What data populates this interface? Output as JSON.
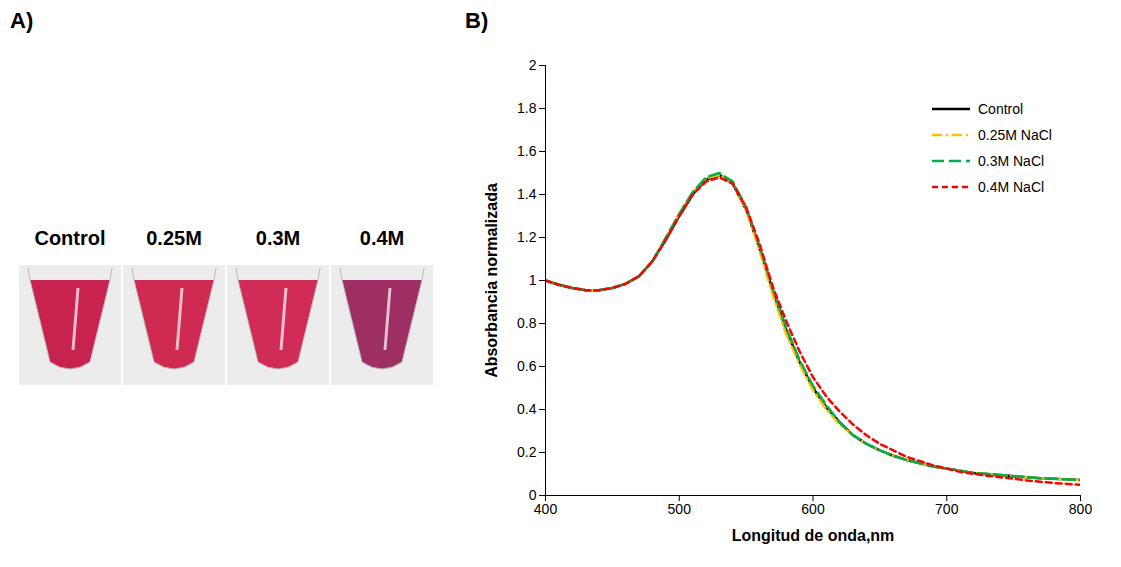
{
  "panel_a": {
    "letter": "A)",
    "labels": [
      "Control",
      "0.25M",
      "0.3M",
      "0.4M"
    ]
  },
  "panel_b": {
    "letter": "B)"
  },
  "chart_data": {
    "type": "line",
    "x_label": "Longitud de onda,nm",
    "y_label": "Absorbancia normalizada",
    "x": [
      400,
      410,
      420,
      430,
      440,
      450,
      460,
      470,
      480,
      490,
      500,
      510,
      520,
      530,
      540,
      550,
      560,
      570,
      580,
      590,
      600,
      610,
      620,
      630,
      640,
      650,
      660,
      670,
      680,
      690,
      700,
      710,
      720,
      730,
      740,
      750,
      760,
      770,
      780,
      790,
      800
    ],
    "series": [
      {
        "name": "Control",
        "color": "#000000",
        "line_style": "solid",
        "values": [
          1.0,
          0.98,
          0.965,
          0.955,
          0.955,
          0.965,
          0.985,
          1.02,
          1.09,
          1.19,
          1.3,
          1.4,
          1.47,
          1.49,
          1.45,
          1.33,
          1.15,
          0.95,
          0.77,
          0.62,
          0.5,
          0.41,
          0.34,
          0.28,
          0.24,
          0.21,
          0.185,
          0.165,
          0.15,
          0.135,
          0.125,
          0.115,
          0.105,
          0.1,
          0.095,
          0.09,
          0.085,
          0.08,
          0.078,
          0.075,
          0.072
        ]
      },
      {
        "name": "0.25M NaCl",
        "color": "#FFC000",
        "line_style": "dash-dot",
        "values": [
          1.0,
          0.98,
          0.965,
          0.955,
          0.955,
          0.965,
          0.985,
          1.02,
          1.09,
          1.2,
          1.31,
          1.41,
          1.475,
          1.49,
          1.45,
          1.33,
          1.14,
          0.93,
          0.75,
          0.61,
          0.49,
          0.4,
          0.33,
          0.28,
          0.24,
          0.21,
          0.185,
          0.165,
          0.15,
          0.135,
          0.125,
          0.115,
          0.105,
          0.1,
          0.095,
          0.09,
          0.085,
          0.08,
          0.078,
          0.075,
          0.072
        ]
      },
      {
        "name": "0.3M NaCl",
        "color": "#00B050",
        "line_style": "long-dash",
        "values": [
          1.0,
          0.98,
          0.965,
          0.955,
          0.955,
          0.965,
          0.985,
          1.02,
          1.09,
          1.2,
          1.31,
          1.41,
          1.48,
          1.5,
          1.46,
          1.34,
          1.16,
          0.96,
          0.78,
          0.63,
          0.51,
          0.42,
          0.34,
          0.28,
          0.24,
          0.21,
          0.185,
          0.165,
          0.15,
          0.135,
          0.125,
          0.115,
          0.105,
          0.1,
          0.095,
          0.09,
          0.085,
          0.08,
          0.078,
          0.075,
          0.072
        ]
      },
      {
        "name": "0.4M NaCl",
        "color": "#FF0000",
        "line_style": "dashed",
        "values": [
          1.0,
          0.98,
          0.965,
          0.955,
          0.955,
          0.965,
          0.985,
          1.02,
          1.09,
          1.19,
          1.3,
          1.4,
          1.46,
          1.48,
          1.45,
          1.34,
          1.17,
          0.97,
          0.81,
          0.67,
          0.55,
          0.46,
          0.39,
          0.33,
          0.28,
          0.24,
          0.21,
          0.18,
          0.16,
          0.14,
          0.125,
          0.11,
          0.1,
          0.092,
          0.085,
          0.078,
          0.07,
          0.064,
          0.058,
          0.054,
          0.05
        ]
      }
    ],
    "xlim": [
      400,
      800
    ],
    "xticks": [
      400,
      500,
      600,
      700,
      800
    ],
    "ylim": [
      0,
      2
    ],
    "yticks": [
      0,
      0.2,
      0.4,
      0.6,
      0.8,
      1,
      1.2,
      1.4,
      1.6,
      1.8,
      2
    ],
    "grid": false,
    "legend": "upper right"
  }
}
